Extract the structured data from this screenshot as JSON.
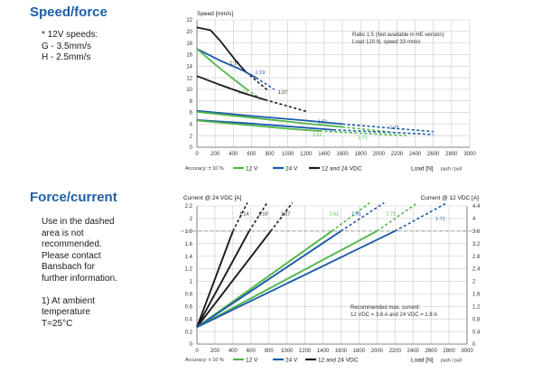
{
  "sections": {
    "speed_title": "Speed/force",
    "speed_notes": [
      "* 12V speeds:",
      "G - 3.5mm/s",
      "H - 2.5mm/s"
    ],
    "current_title": "Force/current",
    "current_notes": [
      "Use in the dashed",
      "area is not",
      "recommended.",
      "Please contact",
      "Bansbach for",
      "further information.",
      "",
      "1) At ambient",
      "temperature",
      "T=25°C"
    ]
  },
  "colors": {
    "green": "#52b748",
    "blue": "#1c5aa8",
    "black": "#1a1a1a",
    "grid": "#c9c9c9"
  },
  "chart_data": [
    {
      "type": "line",
      "ylabel": "Speed [mm/s]",
      "xlabel_main": "Load [N]",
      "xlabel_sub": "push / pull",
      "xlim": [
        0,
        3000
      ],
      "ylim": [
        0,
        22
      ],
      "x_ticks": [
        0,
        200,
        400,
        600,
        800,
        1000,
        1200,
        1400,
        1600,
        1800,
        2000,
        2200,
        2400,
        2600,
        2800,
        3000
      ],
      "y_ticks": [
        0,
        2,
        4,
        6,
        8,
        10,
        12,
        14,
        16,
        18,
        20,
        22
      ],
      "grid": true,
      "note_lines": [
        "Ratio 1:5 (Not available in HE version)",
        "Load 120 N, speed 33 mm/s"
      ],
      "legend": {
        "accuracy": "Accuracy: ± 10 %",
        "items": [
          {
            "label": "12 V",
            "color": "#52b748"
          },
          {
            "label": "24 V",
            "color": "#1c5aa8"
          },
          {
            "label": "12 and 24 VDC",
            "color": "#1a1a1a"
          }
        ]
      },
      "series": [
        {
          "color": "#1a1a1a",
          "solid": [
            [
              0,
              20.7
            ],
            [
              150,
              20.2
            ],
            [
              250,
              18.5
            ],
            [
              350,
              16.5
            ],
            [
              450,
              14.5
            ],
            [
              540,
              13
            ]
          ],
          "dashed": [
            [
              540,
              13
            ],
            [
              780,
              9.8
            ]
          ],
          "label": "1:14",
          "label_at": [
            360,
            14.3
          ]
        },
        {
          "color": "#1c5aa8",
          "solid": [
            [
              0,
              17
            ],
            [
              250,
              15
            ],
            [
              500,
              13.3
            ],
            [
              650,
              12
            ]
          ],
          "dashed": [
            [
              650,
              12
            ],
            [
              850,
              10
            ]
          ],
          "label": "1:19",
          "label_at": [
            640,
            12.6
          ]
        },
        {
          "color": "#52b748",
          "solid": [
            [
              0,
              17
            ],
            [
              200,
              14.3
            ],
            [
              400,
              11.8
            ],
            [
              550,
              10
            ]
          ],
          "dashed": [
            [
              550,
              10
            ],
            [
              730,
              8
            ]
          ],
          "label": "1:19",
          "label_at": [
            450,
            9.2
          ]
        },
        {
          "color": "#1a1a1a",
          "solid": [
            [
              0,
              12.3
            ],
            [
              250,
              10.8
            ],
            [
              500,
              9.4
            ],
            [
              750,
              8.2
            ]
          ],
          "dashed": [
            [
              750,
              8.2
            ],
            [
              1200,
              6.2
            ]
          ],
          "label": "1:27",
          "label_at": [
            890,
            9.2
          ]
        },
        {
          "color": "#1c5aa8",
          "solid": [
            [
              0,
              6.3
            ],
            [
              600,
              5.4
            ],
            [
              1200,
              4.6
            ],
            [
              1600,
              4
            ]
          ],
          "dashed": [
            [
              1600,
              4
            ],
            [
              2600,
              2.7
            ]
          ],
          "label": "1:71",
          "label_at": [
            2120,
            3.1
          ]
        },
        {
          "color": "#52b748",
          "solid": [
            [
              0,
              6.1
            ],
            [
              600,
              5.1
            ],
            [
              1200,
              4.1
            ],
            [
              1600,
              3.5
            ]
          ],
          "dashed": [
            [
              1600,
              3.5
            ],
            [
              2150,
              2.6
            ]
          ],
          "label": "1:71",
          "label_at": [
            1770,
            1.4
          ]
        },
        {
          "color": "#1c5aa8",
          "solid": [
            [
              0,
              4.7
            ],
            [
              500,
              4.2
            ],
            [
              1000,
              3.6
            ],
            [
              1500,
              3
            ]
          ],
          "dashed": [
            [
              1500,
              3
            ],
            [
              2600,
              2.2
            ]
          ],
          "label": "1:51",
          "label_at": [
            1330,
            4.1
          ]
        },
        {
          "color": "#52b748",
          "solid": [
            [
              0,
              4.6
            ],
            [
              500,
              3.9
            ],
            [
              1000,
              3.2
            ],
            [
              1350,
              2.8
            ]
          ],
          "dashed": [
            [
              1350,
              2.8
            ],
            [
              2300,
              2
            ]
          ],
          "label": "1:51",
          "label_at": [
            1270,
            1.9
          ]
        }
      ]
    },
    {
      "type": "line",
      "ylabel_left": "Current @ 24 VDC [A]",
      "ylabel_right": "Current @ 12 VDC [A]",
      "xlabel_main": "Load [N]",
      "xlabel_sub": "push / pull",
      "xlim": [
        0,
        3000
      ],
      "ylim_left": [
        0,
        2.2
      ],
      "ylim_right": [
        0,
        4.4
      ],
      "x_ticks": [
        0,
        200,
        400,
        600,
        800,
        1000,
        1200,
        1400,
        1600,
        1800,
        2000,
        2200,
        2400,
        2600,
        2800,
        3000
      ],
      "y_ticks_left": [
        "0",
        "0.2",
        "0.4",
        "0.6",
        "0.8",
        "1",
        "1.2",
        "1.4",
        "1.6",
        "1.8",
        "2",
        "2.2"
      ],
      "y_ticks_right": [
        "0",
        "0.4",
        "0.8",
        "1.2",
        "1.6",
        "2",
        "2.4",
        "2.8",
        "3.2",
        "3.6",
        "4",
        "4.4"
      ],
      "grid": true,
      "limit_line": 1.8,
      "note_lines": [
        "Recommended max. current:",
        "12 VDC = 3.6 A and 24 VDC = 1.8 A"
      ],
      "legend": {
        "accuracy": "Accuracy: ± 10 %",
        "items": [
          {
            "label": "12 V",
            "color": "#52b748"
          },
          {
            "label": "24 V",
            "color": "#1c5aa8"
          },
          {
            "label": "12 and 24 VDC",
            "color": "#1a1a1a"
          }
        ]
      },
      "series": [
        {
          "color": "#1a1a1a",
          "start": [
            0,
            0.27
          ],
          "solid_end": [
            400,
            1.8
          ],
          "dashed_end": [
            560,
            2.25
          ],
          "label": "1:14",
          "label_at": [
            470,
            2.05
          ]
        },
        {
          "color": "#1a1a1a",
          "start": [
            0,
            0.27
          ],
          "solid_end": [
            580,
            1.8
          ],
          "dashed_end": [
            780,
            2.25
          ],
          "label": "1:19",
          "label_at": [
            680,
            2.05
          ]
        },
        {
          "color": "#1a1a1a",
          "start": [
            0,
            0.27
          ],
          "solid_end": [
            820,
            1.8
          ],
          "dashed_end": [
            1060,
            2.25
          ],
          "label": "1:27",
          "label_at": [
            930,
            2.05
          ]
        },
        {
          "color": "#52b748",
          "start": [
            0,
            0.27
          ],
          "solid_end": [
            1500,
            1.8
          ],
          "dashed_end": [
            1920,
            2.25
          ],
          "label": "1:51",
          "label_at": [
            1470,
            2.05
          ]
        },
        {
          "color": "#1c5aa8",
          "start": [
            0,
            0.27
          ],
          "solid_end": [
            1600,
            1.8
          ],
          "dashed_end": [
            2080,
            2.25
          ],
          "label": "1:51",
          "label_at": [
            1720,
            2.05
          ]
        },
        {
          "color": "#52b748",
          "start": [
            0,
            0.27
          ],
          "solid_end": [
            2000,
            1.8
          ],
          "dashed_end": [
            2450,
            2.25
          ],
          "label": "1:71",
          "label_at": [
            2100,
            2.05
          ]
        },
        {
          "color": "#1c5aa8",
          "start": [
            0,
            0.27
          ],
          "solid_end": [
            2200,
            1.8
          ],
          "dashed_end": [
            2780,
            2.25
          ],
          "label": "1:71",
          "label_at": [
            2650,
            1.97
          ]
        }
      ]
    }
  ]
}
